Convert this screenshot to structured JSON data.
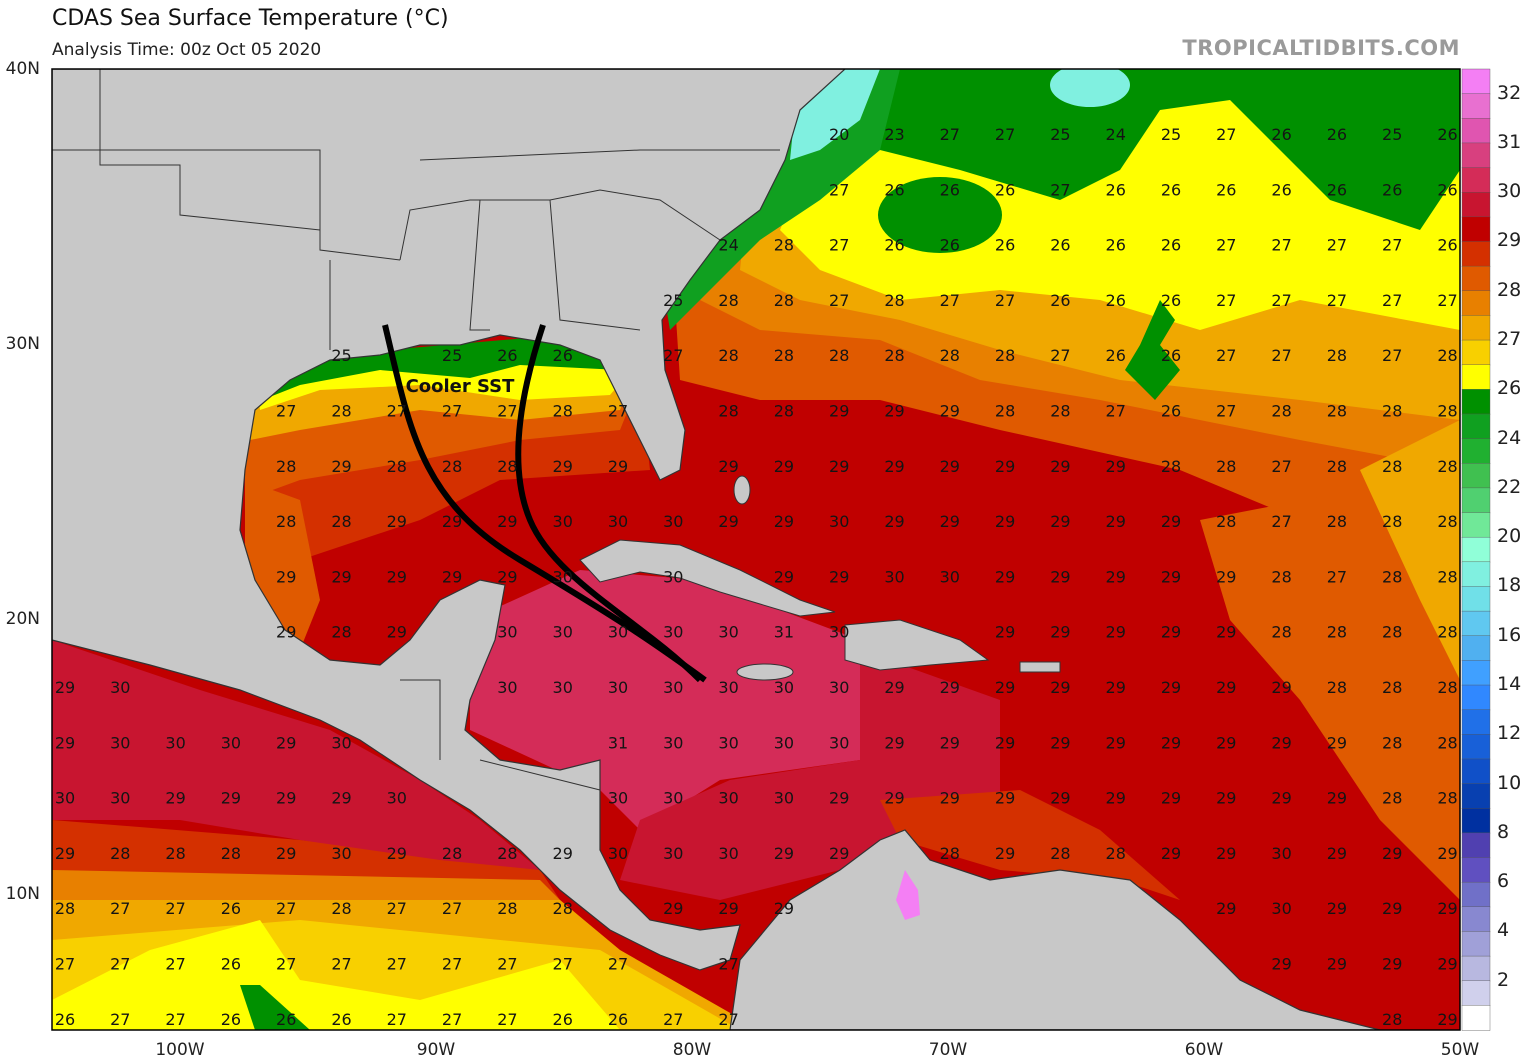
{
  "header": {
    "title": "CDAS Sea Surface Temperature (°C)",
    "subtitle": "Analysis Time: 00z Oct 05 2020",
    "brand": "TROPICALTIDBITS.COM"
  },
  "axes": {
    "lat_labels": [
      "40N",
      "30N",
      "20N",
      "10N"
    ],
    "lon_labels": [
      "100W",
      "90W",
      "80W",
      "70W",
      "60W",
      "50W"
    ]
  },
  "annotation": {
    "text": "Cooler SST",
    "track_color": "#000000"
  },
  "colors": {
    "land": "#c8c8c8",
    "coast": "#333333"
  },
  "colorbar": {
    "colors": [
      "#f47ff4",
      "#e870d0",
      "#e055b0",
      "#d8407f",
      "#d42c58",
      "#c81530",
      "#c00000",
      "#d43000",
      "#e05a00",
      "#e88000",
      "#f0a800",
      "#f8d000",
      "#ffff00",
      "#009000",
      "#10a020",
      "#20b030",
      "#40c050",
      "#50d070",
      "#70e898",
      "#90ffd8",
      "#80f0e0",
      "#70e0e8",
      "#60c8f0",
      "#50b0f0",
      "#40a0ff",
      "#3088ff",
      "#2070e8",
      "#1860d8",
      "#1050c8",
      "#0840b0",
      "#0030a0",
      "#5040b0",
      "#6050c0",
      "#7070c8",
      "#8888d0",
      "#a0a0d8",
      "#b8b8e0",
      "#d0d0ec",
      "#ffffff"
    ],
    "labels": [
      "32",
      "31",
      "30",
      "29",
      "28",
      "27",
      "26",
      "24",
      "22",
      "20",
      "18",
      "16",
      "14",
      "12",
      "10",
      "8",
      "6",
      "4",
      "2"
    ]
  },
  "sst_labels": [
    [
      "",
      "",
      "",
      "",
      "",
      "",
      "",
      "",
      "",
      "",
      "",
      "",
      "",
      "",
      "20",
      "23",
      "27",
      "27",
      "25",
      "24",
      "25",
      "27",
      "26",
      "26",
      "25",
      "26"
    ],
    [
      "",
      "",
      "",
      "",
      "",
      "",
      "",
      "",
      "",
      "",
      "",
      "",
      "",
      "",
      "27",
      "26",
      "26",
      "26",
      "27",
      "26",
      "26",
      "26",
      "26",
      "26",
      "26",
      "26"
    ],
    [
      "",
      "",
      "",
      "",
      "",
      "",
      "",
      "",
      "",
      "",
      "",
      "",
      "24",
      "28",
      "27",
      "26",
      "26",
      "26",
      "26",
      "26",
      "26",
      "27",
      "27",
      "27",
      "27",
      "26"
    ],
    [
      "",
      "",
      "",
      "",
      "",
      "",
      "",
      "",
      "",
      "",
      "",
      "25",
      "28",
      "28",
      "27",
      "28",
      "27",
      "27",
      "26",
      "26",
      "26",
      "27",
      "27",
      "27",
      "27",
      "27"
    ],
    [
      "",
      "",
      "",
      "",
      "",
      "25",
      "",
      "25",
      "26",
      "26",
      "",
      "27",
      "28",
      "28",
      "28",
      "28",
      "28",
      "28",
      "27",
      "26",
      "26",
      "27",
      "27",
      "28",
      "27",
      "28"
    ],
    [
      "",
      "",
      "",
      "",
      "27",
      "28",
      "27",
      "27",
      "27",
      "28",
      "27",
      "",
      "28",
      "28",
      "29",
      "29",
      "29",
      "28",
      "28",
      "27",
      "26",
      "27",
      "28",
      "28",
      "28",
      "28"
    ],
    [
      "",
      "",
      "",
      "",
      "28",
      "29",
      "28",
      "28",
      "28",
      "29",
      "29",
      "",
      "29",
      "29",
      "29",
      "29",
      "29",
      "29",
      "29",
      "29",
      "28",
      "28",
      "27",
      "28",
      "28",
      "28"
    ],
    [
      "",
      "",
      "",
      "",
      "28",
      "28",
      "29",
      "29",
      "29",
      "30",
      "30",
      "30",
      "29",
      "29",
      "30",
      "29",
      "29",
      "29",
      "29",
      "29",
      "29",
      "28",
      "27",
      "28",
      "28",
      "28"
    ],
    [
      "",
      "",
      "",
      "",
      "29",
      "29",
      "29",
      "29",
      "29",
      "30",
      "",
      "30",
      "",
      "29",
      "29",
      "30",
      "30",
      "29",
      "29",
      "29",
      "29",
      "29",
      "28",
      "27",
      "28",
      "28"
    ],
    [
      "",
      "",
      "",
      "",
      "29",
      "28",
      "29",
      "",
      "30",
      "30",
      "30",
      "30",
      "30",
      "31",
      "30",
      "",
      "",
      "29",
      "29",
      "29",
      "29",
      "29",
      "28",
      "28",
      "28",
      "28"
    ],
    [
      "29",
      "30",
      "",
      "",
      "",
      "",
      "",
      "",
      "30",
      "30",
      "30",
      "30",
      "30",
      "30",
      "30",
      "29",
      "29",
      "29",
      "29",
      "29",
      "29",
      "29",
      "29",
      "28",
      "28",
      "28"
    ],
    [
      "29",
      "30",
      "30",
      "30",
      "29",
      "30",
      "",
      "",
      "",
      "",
      "31",
      "30",
      "30",
      "30",
      "30",
      "29",
      "29",
      "29",
      "29",
      "29",
      "29",
      "29",
      "29",
      "29",
      "28",
      "28"
    ],
    [
      "30",
      "30",
      "29",
      "29",
      "29",
      "29",
      "30",
      "",
      "",
      "",
      "30",
      "30",
      "30",
      "30",
      "29",
      "29",
      "29",
      "29",
      "29",
      "29",
      "29",
      "29",
      "29",
      "29",
      "28",
      "28"
    ],
    [
      "29",
      "28",
      "28",
      "28",
      "29",
      "30",
      "29",
      "28",
      "28",
      "29",
      "30",
      "30",
      "30",
      "29",
      "29",
      "",
      "28",
      "29",
      "28",
      "28",
      "29",
      "29",
      "30",
      "29",
      "29",
      "29"
    ],
    [
      "28",
      "27",
      "27",
      "26",
      "27",
      "28",
      "27",
      "27",
      "28",
      "28",
      "",
      "29",
      "29",
      "29",
      "",
      "",
      "",
      "",
      "",
      "",
      "",
      "29",
      "30",
      "29",
      "29",
      "29"
    ],
    [
      "27",
      "27",
      "27",
      "26",
      "27",
      "27",
      "27",
      "27",
      "27",
      "27",
      "27",
      "",
      "27",
      "",
      "",
      "",
      "",
      "",
      "",
      "",
      "",
      "",
      "29",
      "29",
      "29",
      "29"
    ],
    [
      "26",
      "27",
      "27",
      "26",
      "26",
      "26",
      "27",
      "27",
      "27",
      "26",
      "26",
      "27",
      "27",
      "",
      "",
      "",
      "",
      "",
      "",
      "",
      "",
      "",
      "",
      "",
      "28",
      "29"
    ]
  ]
}
